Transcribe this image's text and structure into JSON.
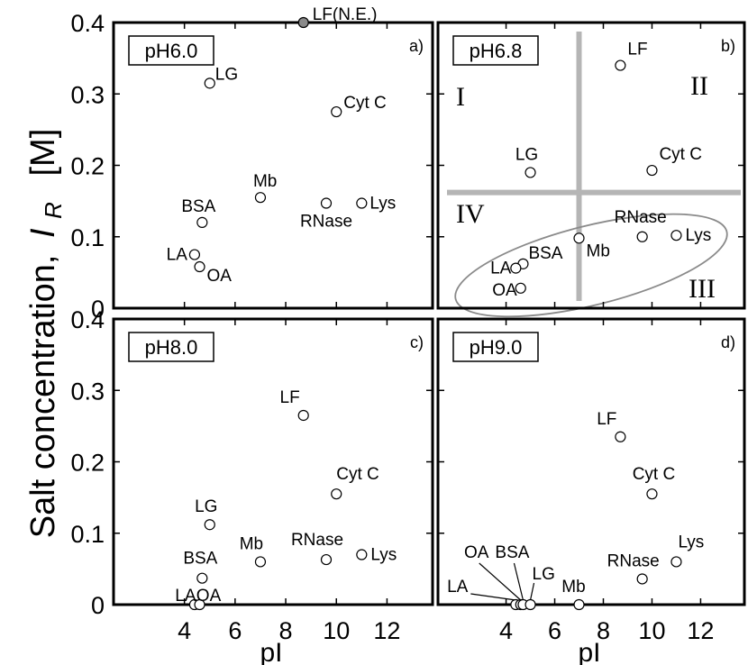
{
  "yaxis_label": "Salt concentration,",
  "yaxis_symbol": "I",
  "yaxis_sub": "R",
  "yaxis_unit": "[M]",
  "chart_data": [
    {
      "type": "scatter",
      "panel": "a)",
      "ph": "pH6.0",
      "xlabel": "",
      "xlim": [
        1.2,
        13.8
      ],
      "ylim": [
        0,
        0.4
      ],
      "xticks": [
        4,
        6,
        8,
        10,
        12
      ],
      "yticks": [
        0,
        0.1,
        0.2,
        0.3,
        0.4
      ],
      "ytick_labels": [
        "0",
        "0.1",
        "0.2",
        "0.3",
        "0.4"
      ],
      "points": [
        {
          "label": "LF(N.E.)",
          "x": 8.7,
          "y": 0.4,
          "filled": true
        },
        {
          "label": "LG",
          "x": 5.0,
          "y": 0.315
        },
        {
          "label": "Cyt C",
          "x": 10.0,
          "y": 0.275
        },
        {
          "label": "Mb",
          "x": 7.0,
          "y": 0.155
        },
        {
          "label": "BSA",
          "x": 4.7,
          "y": 0.12
        },
        {
          "label": "RNase",
          "x": 9.6,
          "y": 0.147
        },
        {
          "label": "Lys",
          "x": 11.0,
          "y": 0.147
        },
        {
          "label": "LA",
          "x": 4.4,
          "y": 0.075
        },
        {
          "label": "OA",
          "x": 4.6,
          "y": 0.058
        }
      ]
    },
    {
      "type": "scatter",
      "panel": "b)",
      "ph": "pH6.8",
      "xlabel": "",
      "xlim": [
        1.2,
        13.8
      ],
      "ylim": [
        0,
        0.4
      ],
      "xticks": [
        4,
        6,
        8,
        10,
        12
      ],
      "yticks": [
        0,
        0.1,
        0.2,
        0.3,
        0.4
      ],
      "ytick_labels": [],
      "quadrants": [
        "I",
        "II",
        "III",
        "IV"
      ],
      "points": [
        {
          "label": "LF",
          "x": 8.7,
          "y": 0.34
        },
        {
          "label": "LG",
          "x": 5.0,
          "y": 0.19
        },
        {
          "label": "Cyt C",
          "x": 10.0,
          "y": 0.193
        },
        {
          "label": "RNase",
          "x": 9.6,
          "y": 0.1
        },
        {
          "label": "Lys",
          "x": 11.0,
          "y": 0.102
        },
        {
          "label": "Mb",
          "x": 7.0,
          "y": 0.098
        },
        {
          "label": "BSA",
          "x": 4.7,
          "y": 0.062
        },
        {
          "label": "LA",
          "x": 4.4,
          "y": 0.056
        },
        {
          "label": "OA",
          "x": 4.6,
          "y": 0.028
        }
      ]
    },
    {
      "type": "scatter",
      "panel": "c)",
      "ph": "pH8.0",
      "xlabel": "pI",
      "xlim": [
        1.2,
        13.8
      ],
      "ylim": [
        0,
        0.4
      ],
      "xticks": [
        4,
        6,
        8,
        10,
        12
      ],
      "yticks": [
        0,
        0.1,
        0.2,
        0.3,
        0.4
      ],
      "ytick_labels": [
        "0",
        "0.1",
        "0.2",
        "0.3",
        "0.4"
      ],
      "points": [
        {
          "label": "LF",
          "x": 8.7,
          "y": 0.265
        },
        {
          "label": "Cyt C",
          "x": 10.0,
          "y": 0.155
        },
        {
          "label": "LG",
          "x": 5.0,
          "y": 0.112
        },
        {
          "label": "Mb",
          "x": 7.0,
          "y": 0.06
        },
        {
          "label": "RNase",
          "x": 9.6,
          "y": 0.063
        },
        {
          "label": "Lys",
          "x": 11.0,
          "y": 0.07
        },
        {
          "label": "BSA",
          "x": 4.7,
          "y": 0.037
        },
        {
          "label": "LA",
          "x": 4.4,
          "y": 0.0
        },
        {
          "label": "OA",
          "x": 4.6,
          "y": 0.0
        }
      ]
    },
    {
      "type": "scatter",
      "panel": "d)",
      "ph": "pH9.0",
      "xlabel": "pI",
      "xlim": [
        1.2,
        13.8
      ],
      "ylim": [
        0,
        0.4
      ],
      "xticks": [
        4,
        6,
        8,
        10,
        12
      ],
      "yticks": [
        0,
        0.1,
        0.2,
        0.3,
        0.4
      ],
      "ytick_labels": [],
      "points": [
        {
          "label": "LF",
          "x": 8.7,
          "y": 0.235
        },
        {
          "label": "Cyt C",
          "x": 10.0,
          "y": 0.155
        },
        {
          "label": "Lys",
          "x": 11.0,
          "y": 0.06
        },
        {
          "label": "RNase",
          "x": 9.6,
          "y": 0.036
        },
        {
          "label": "Mb",
          "x": 7.0,
          "y": 0.0
        },
        {
          "label": "LA",
          "x": 4.4,
          "y": 0.0
        },
        {
          "label": "OA",
          "x": 4.6,
          "y": 0.0
        },
        {
          "label": "BSA",
          "x": 4.7,
          "y": 0.0
        },
        {
          "label": "LG",
          "x": 5.0,
          "y": 0.0
        }
      ]
    }
  ]
}
